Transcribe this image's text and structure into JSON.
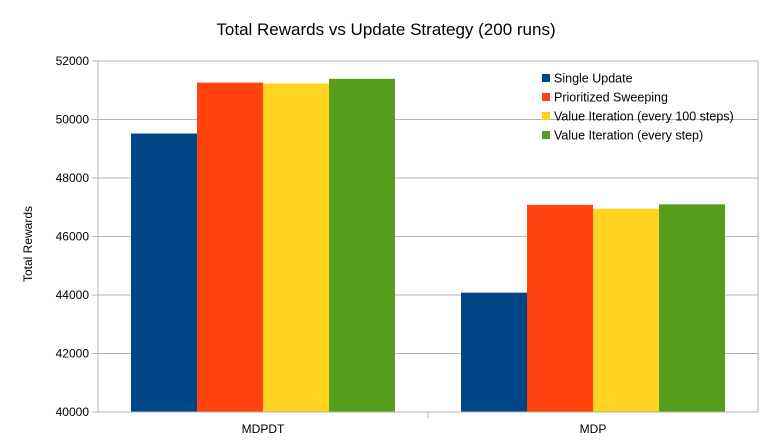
{
  "chart_data": {
    "type": "bar",
    "title": "Total Rewards vs Update Strategy (200 runs)",
    "xlabel": "",
    "ylabel": "Total Rewards",
    "categories": [
      "MDPDT",
      "MDP"
    ],
    "ylim": [
      40000,
      52000
    ],
    "yticks": [
      40000,
      42000,
      44000,
      46000,
      48000,
      50000,
      52000
    ],
    "grid": true,
    "legend_position": "top-right",
    "series": [
      {
        "name": "Single Update",
        "color": "#004586",
        "values": [
          49520,
          44080
        ]
      },
      {
        "name": "Prioritized Sweeping",
        "color": "#ff420e",
        "values": [
          51260,
          47080
        ]
      },
      {
        "name": "Value Iteration (every 100 steps)",
        "color": "#ffd320",
        "values": [
          51230,
          46950
        ]
      },
      {
        "name": "Value Iteration (every step)",
        "color": "#579d1c",
        "values": [
          51390,
          47100
        ]
      }
    ]
  }
}
